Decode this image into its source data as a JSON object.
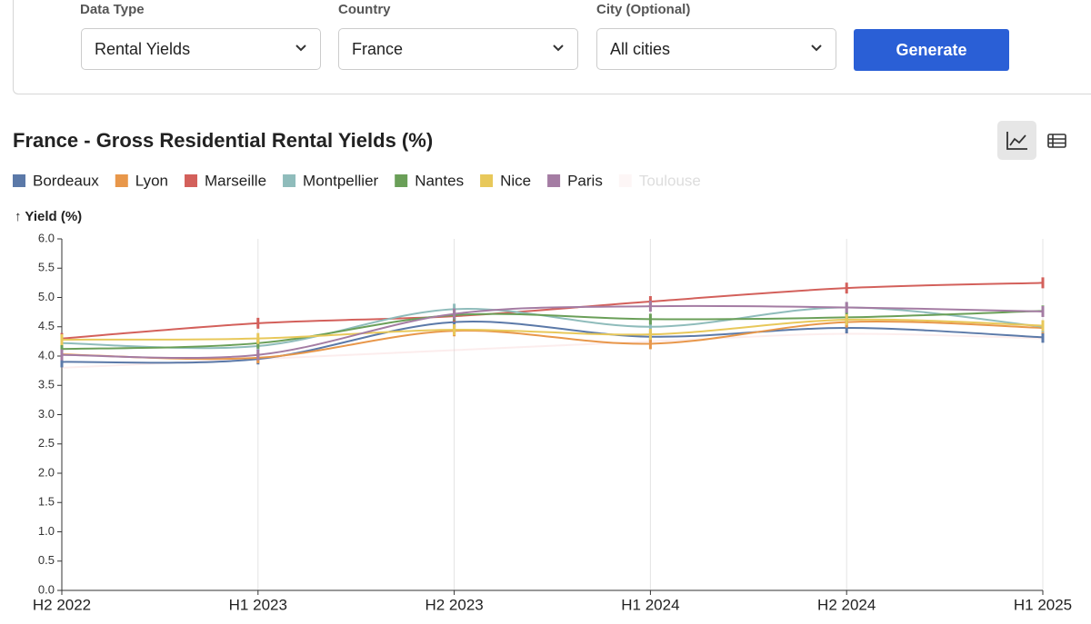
{
  "form": {
    "fields": [
      {
        "label": "Data Type",
        "value": "Rental Yields"
      },
      {
        "label": "Country",
        "value": "France"
      },
      {
        "label": "City (Optional)",
        "value": "All cities"
      }
    ],
    "button": "Generate"
  },
  "chart_data": {
    "type": "line",
    "title": "France - Gross Residential Rental Yields (%)",
    "y_label": "↑ Yield (%)",
    "categories": [
      "H2 2022",
      "H1 2023",
      "H2 2023",
      "H1 2024",
      "H2 2024",
      "H1 2025"
    ],
    "ylim": [
      0,
      6
    ],
    "yticks": [
      {
        "value": 0,
        "label": "0.0"
      },
      0.5,
      {
        "value": 1,
        "label": "1.0"
      },
      1.5,
      {
        "value": 2,
        "label": "2.0"
      },
      2.5,
      {
        "value": 3,
        "label": "3.0"
      },
      3.5,
      {
        "value": 4,
        "label": "4.0"
      },
      4.5,
      {
        "value": 5,
        "label": "5.0"
      },
      5.5,
      {
        "value": 6,
        "label": "6.0"
      }
    ],
    "grid": "x",
    "series": [
      {
        "name": "Bordeaux",
        "color": "#5b79a8",
        "values": [
          3.9,
          3.95,
          4.58,
          4.33,
          4.48,
          4.32
        ]
      },
      {
        "name": "Lyon",
        "color": "#e8974a",
        "values": [
          4.03,
          3.97,
          4.43,
          4.21,
          4.58,
          4.48
        ]
      },
      {
        "name": "Marseille",
        "color": "#d3605b",
        "values": [
          4.3,
          4.56,
          4.68,
          4.93,
          5.16,
          5.25
        ]
      },
      {
        "name": "Montpellier",
        "color": "#8fbcbb",
        "values": [
          4.22,
          4.17,
          4.8,
          4.5,
          4.83,
          4.5
        ]
      },
      {
        "name": "Nantes",
        "color": "#6a9f58",
        "values": [
          4.12,
          4.22,
          4.7,
          4.63,
          4.66,
          4.77
        ]
      },
      {
        "name": "Nice",
        "color": "#e8c85a",
        "values": [
          4.28,
          4.3,
          4.45,
          4.37,
          4.62,
          4.52
        ]
      },
      {
        "name": "Paris",
        "color": "#a47ca3",
        "values": [
          4.02,
          4.02,
          4.72,
          4.85,
          4.83,
          4.76
        ]
      },
      {
        "name": "Toulouse",
        "color": "#f2b8b8",
        "hidden": true,
        "values": [
          3.8,
          3.95,
          4.1,
          4.25,
          4.38,
          4.3
        ]
      }
    ]
  }
}
